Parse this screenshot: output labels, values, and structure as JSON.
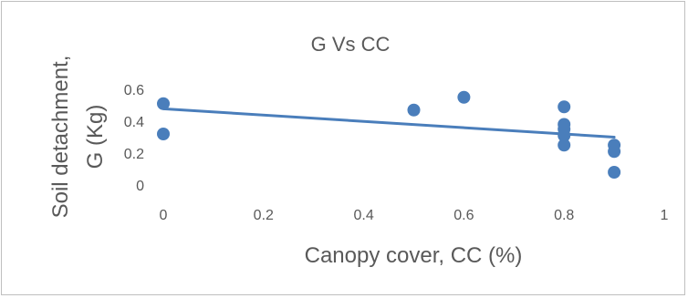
{
  "chart_data": {
    "type": "scatter",
    "title": "G Vs CC",
    "xlabel": "Canopy cover, CC (%)",
    "ylabel_lines": [
      "Soil detachment,",
      "G (Kg)"
    ],
    "xlim": [
      0,
      1
    ],
    "ylim": [
      0,
      0.6
    ],
    "x_ticks": [
      "0",
      "0.2",
      "0.4",
      "0.6",
      "0.8",
      "1"
    ],
    "y_ticks": [
      "0",
      "0.2",
      "0.4",
      "0.6"
    ],
    "grid": false,
    "legend": "none",
    "points": [
      {
        "x": 0.0,
        "y": 0.51
      },
      {
        "x": 0.0,
        "y": 0.32
      },
      {
        "x": 0.5,
        "y": 0.47
      },
      {
        "x": 0.6,
        "y": 0.55
      },
      {
        "x": 0.8,
        "y": 0.49
      },
      {
        "x": 0.8,
        "y": 0.38
      },
      {
        "x": 0.8,
        "y": 0.35
      },
      {
        "x": 0.8,
        "y": 0.31
      },
      {
        "x": 0.8,
        "y": 0.25
      },
      {
        "x": 0.9,
        "y": 0.25
      },
      {
        "x": 0.9,
        "y": 0.21
      },
      {
        "x": 0.9,
        "y": 0.08
      }
    ],
    "trendline": {
      "x": [
        0.0,
        0.9
      ],
      "y": [
        0.478,
        0.3
      ]
    },
    "marker_color": "#4a7ebb",
    "line_color": "#4a7ebb"
  }
}
